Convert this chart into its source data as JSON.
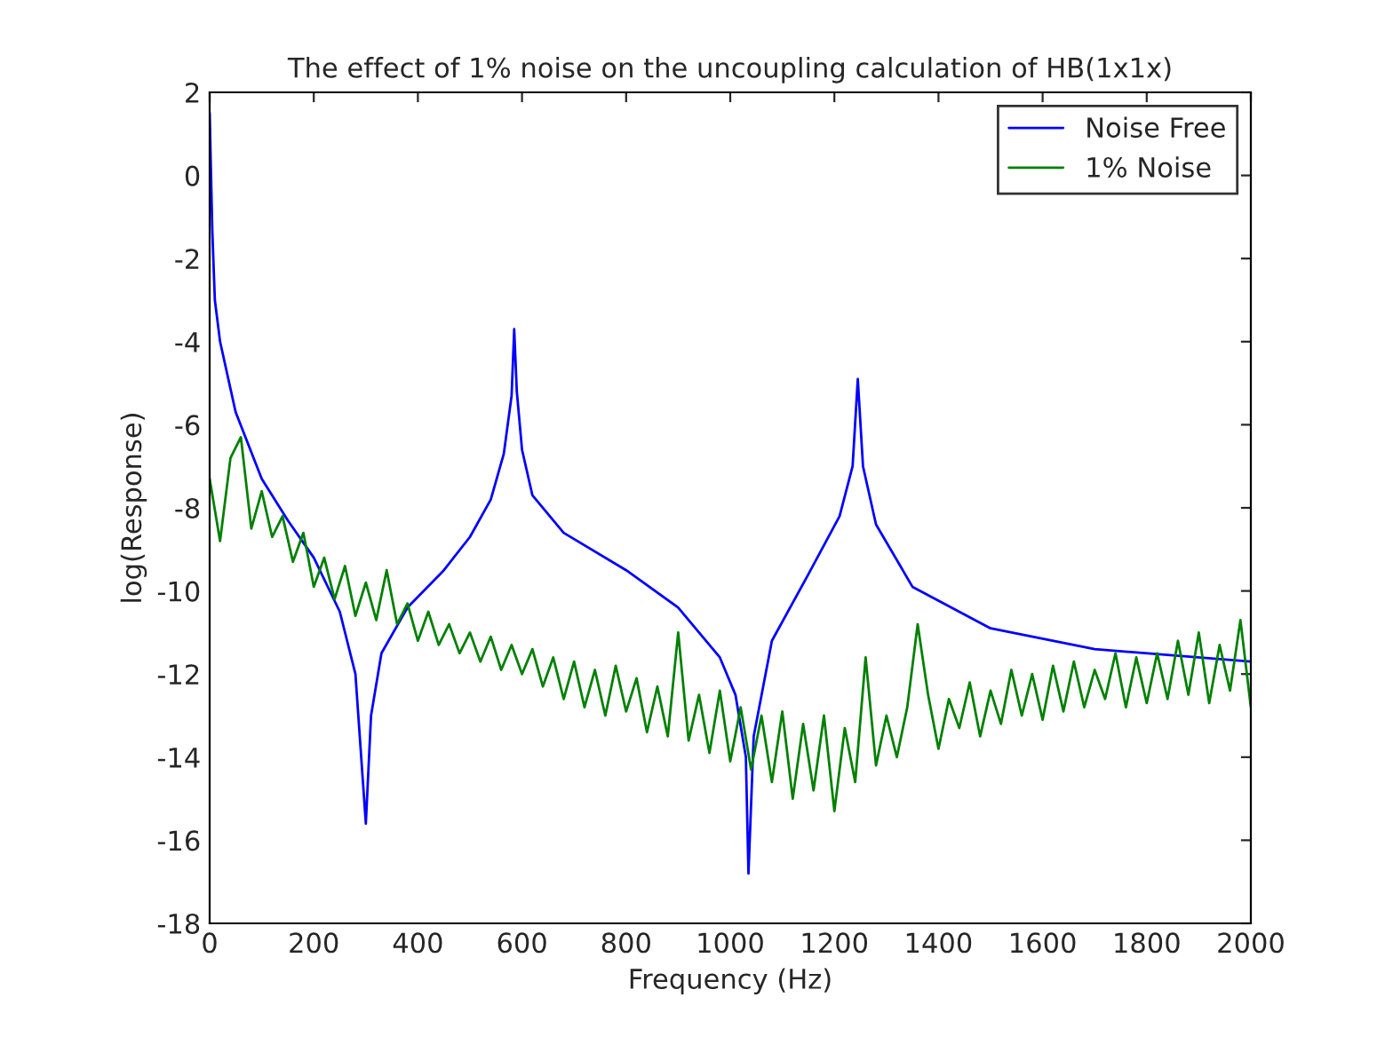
{
  "chart_data": {
    "type": "line",
    "title": "The effect of 1% noise on the uncoupling calculation of HB(1x1x)",
    "xlabel": "Frequency (Hz)",
    "ylabel": "log(Response)",
    "xlim": [
      0,
      2000
    ],
    "xticks": [
      0,
      200,
      400,
      600,
      800,
      1000,
      1200,
      1400,
      1600,
      1800,
      2000
    ],
    "ylim": [
      -18,
      2
    ],
    "yticks": [
      -18,
      -16,
      -14,
      -12,
      -10,
      -8,
      -6,
      -4,
      -2,
      0,
      2
    ],
    "grid": false,
    "legend": "top right",
    "marker": "none",
    "line_style": "solid",
    "series": [
      {
        "name": "Noise Free",
        "color": "#0000ff",
        "x": [
          0,
          5,
          10,
          20,
          50,
          100,
          150,
          200,
          250,
          280,
          300,
          310,
          330,
          380,
          450,
          500,
          540,
          565,
          580,
          585,
          590,
          600,
          620,
          680,
          800,
          900,
          980,
          1010,
          1030,
          1035,
          1045,
          1080,
          1150,
          1210,
          1235,
          1245,
          1255,
          1280,
          1350,
          1500,
          1700,
          2000
        ],
        "values": [
          1.5,
          -1.3,
          -3,
          -4,
          -5.7,
          -7.3,
          -8.3,
          -9.2,
          -10.5,
          -12,
          -15.6,
          -13,
          -11.5,
          -10.4,
          -9.5,
          -8.7,
          -7.8,
          -6.7,
          -5.3,
          -3.7,
          -5.2,
          -6.6,
          -7.7,
          -8.6,
          -9.5,
          -10.4,
          -11.6,
          -12.5,
          -14,
          -16.8,
          -13.5,
          -11.2,
          -9.6,
          -8.2,
          -7,
          -4.9,
          -7,
          -8.4,
          -9.9,
          -10.9,
          -11.4,
          -11.7
        ]
      },
      {
        "name": "1% Noise",
        "color": "#008000",
        "x": [
          0,
          20,
          40,
          60,
          80,
          100,
          120,
          140,
          160,
          180,
          200,
          220,
          240,
          260,
          280,
          300,
          320,
          340,
          360,
          380,
          400,
          420,
          440,
          460,
          480,
          500,
          520,
          540,
          560,
          580,
          600,
          620,
          640,
          660,
          680,
          700,
          720,
          740,
          760,
          780,
          800,
          820,
          840,
          860,
          880,
          900,
          920,
          940,
          960,
          980,
          1000,
          1020,
          1040,
          1060,
          1080,
          1100,
          1120,
          1140,
          1160,
          1180,
          1200,
          1220,
          1240,
          1260,
          1280,
          1300,
          1320,
          1340,
          1360,
          1380,
          1400,
          1420,
          1440,
          1460,
          1480,
          1500,
          1520,
          1540,
          1560,
          1580,
          1600,
          1620,
          1640,
          1660,
          1680,
          1700,
          1720,
          1740,
          1760,
          1780,
          1800,
          1820,
          1840,
          1860,
          1880,
          1900,
          1920,
          1940,
          1960,
          1980,
          2000
        ],
        "values": [
          -7.3,
          -8.8,
          -6.8,
          -6.3,
          -8.5,
          -7.6,
          -8.7,
          -8.2,
          -9.3,
          -8.6,
          -9.9,
          -9.2,
          -10.2,
          -9.4,
          -10.6,
          -9.8,
          -10.7,
          -9.5,
          -10.8,
          -10.3,
          -11.2,
          -10.5,
          -11.3,
          -10.8,
          -11.5,
          -11.0,
          -11.7,
          -11.1,
          -11.9,
          -11.3,
          -12.0,
          -11.4,
          -12.3,
          -11.6,
          -12.6,
          -11.7,
          -12.8,
          -11.9,
          -13.0,
          -11.8,
          -12.9,
          -12.1,
          -13.4,
          -12.3,
          -13.5,
          -11.0,
          -13.6,
          -12.5,
          -13.9,
          -12.4,
          -14.1,
          -12.8,
          -14.3,
          -13.0,
          -14.6,
          -12.9,
          -15.0,
          -13.2,
          -14.8,
          -13.0,
          -15.3,
          -13.3,
          -14.6,
          -11.6,
          -14.2,
          -13.0,
          -14.0,
          -12.8,
          -10.8,
          -12.5,
          -13.8,
          -12.6,
          -13.3,
          -12.2,
          -13.5,
          -12.4,
          -13.2,
          -11.9,
          -13.0,
          -12.0,
          -13.1,
          -11.8,
          -12.9,
          -11.7,
          -12.8,
          -11.9,
          -12.6,
          -11.5,
          -12.8,
          -11.6,
          -12.7,
          -11.5,
          -12.6,
          -11.2,
          -12.5,
          -11.0,
          -12.7,
          -11.3,
          -12.4,
          -10.7,
          -12.8
        ]
      }
    ]
  }
}
